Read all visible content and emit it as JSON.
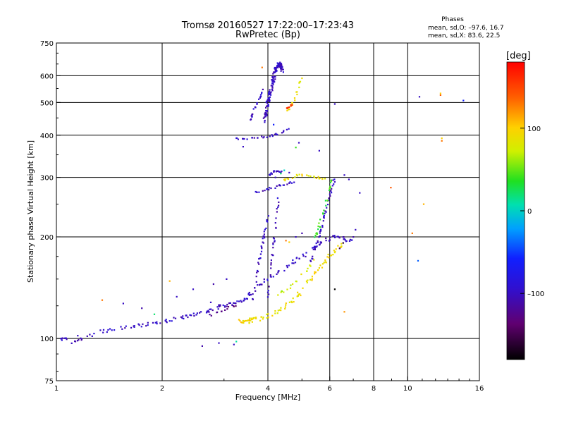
{
  "header": {
    "title": "Tromsø 20160527 17:22:00–17:23:43",
    "subtitle": "RwPretec (Bp)"
  },
  "phases_box": {
    "heading": "Phases",
    "line_o": "mean, sd,O: –97.6, 16.7",
    "line_x": "mean, sd,X:  83.6, 22.5"
  },
  "colorbar": {
    "unit_label": "[deg]",
    "range": [
      -180,
      180
    ],
    "ticks": [
      {
        "value": 100,
        "label": "100"
      },
      {
        "value": 0,
        "label": "0"
      },
      {
        "value": -100,
        "label": "–100"
      }
    ]
  },
  "chart_data": {
    "type": "scatter",
    "title": "Tromsø 20160527 17:22:00–17:23:43",
    "subtitle": "RwPretec (Bp)",
    "xlabel": "Frequency [MHz]",
    "ylabel": "Stationary phase Virtual Height [km]",
    "x_scale": "log",
    "y_scale": "log",
    "xlim": [
      1,
      16
    ],
    "ylim": [
      75,
      750
    ],
    "xticks": [
      {
        "value": 1,
        "label": "1"
      },
      {
        "value": 2,
        "label": "2"
      },
      {
        "value": 4,
        "label": "4"
      },
      {
        "value": 6,
        "label": "6"
      },
      {
        "value": 8,
        "label": "8"
      },
      {
        "value": 10,
        "label": "10"
      },
      {
        "value": 16,
        "label": "16"
      }
    ],
    "xgrid": [
      2,
      4,
      6,
      8,
      10
    ],
    "yticks": [
      {
        "value": 75,
        "label": "75"
      },
      {
        "value": 100,
        "label": "100"
      },
      {
        "value": 200,
        "label": "200"
      },
      {
        "value": 300,
        "label": "300"
      },
      {
        "value": 400,
        "label": "400"
      },
      {
        "value": 500,
        "label": "500"
      },
      {
        "value": 600,
        "label": "600"
      },
      {
        "value": 750,
        "label": "750"
      }
    ],
    "ygrid": [
      100,
      200,
      300,
      400,
      500,
      600
    ],
    "color_variable": "phase [deg]",
    "traces": [
      {
        "x": [
          1.0,
          1.05,
          1.1,
          1.15,
          1.2,
          1.3,
          1.4,
          1.5,
          1.6,
          1.7,
          1.8,
          1.9,
          2.0,
          2.1,
          2.2,
          2.3,
          2.4,
          2.5,
          2.6,
          2.7,
          2.8,
          2.9,
          3.0,
          3.1,
          3.2,
          3.3,
          3.4,
          3.5
        ],
        "y": [
          99,
          100,
          97,
          98,
          101,
          104,
          106,
          108,
          108,
          109,
          110,
          111,
          112,
          113,
          115,
          116,
          117,
          118,
          120,
          121,
          122,
          124,
          125,
          126,
          128,
          129,
          130,
          132
        ],
        "phase": -100,
        "jitter": 0.025,
        "per": 4
      },
      {
        "x": [
          3.4,
          3.55,
          3.7,
          3.85,
          4.0,
          4.2,
          4.4,
          4.6,
          4.8,
          5.0,
          5.2,
          5.4,
          5.6,
          5.8,
          6.0,
          6.2,
          6.4,
          6.6,
          6.8,
          7.0
        ],
        "y": [
          131,
          135,
          140,
          145,
          150,
          155,
          160,
          165,
          170,
          175,
          180,
          185,
          190,
          195,
          198,
          199,
          199,
          197,
          196,
          195
        ],
        "phase": -100,
        "jitter": 0.03,
        "per": 4
      },
      {
        "x": [
          3.5,
          3.7,
          3.9,
          4.1,
          4.3,
          4.5,
          4.7,
          4.9,
          5.1,
          5.3,
          5.5,
          5.7,
          5.9,
          6.1,
          6.3,
          6.5
        ],
        "y": [
          113,
          114,
          116,
          118,
          121,
          125,
          130,
          135,
          142,
          150,
          158,
          165,
          172,
          178,
          185,
          190
        ],
        "phase": 90,
        "jitter": 0.035,
        "per": 5
      },
      {
        "x": [
          5.3,
          5.4,
          5.5,
          5.6,
          5.7,
          5.8,
          5.9,
          6.0,
          6.1,
          6.2
        ],
        "y": [
          170,
          180,
          190,
          200,
          215,
          230,
          250,
          265,
          280,
          300
        ],
        "phase": -100,
        "jitter": 0.02,
        "per": 5
      },
      {
        "x": [
          5.4,
          5.5,
          5.6,
          5.7,
          5.8,
          5.9,
          6.0,
          6.1
        ],
        "y": [
          195,
          205,
          215,
          230,
          245,
          260,
          280,
          300
        ],
        "phase": 40,
        "jitter": 0.02,
        "per": 4
      },
      {
        "x": [
          3.6,
          3.7,
          3.75,
          3.8,
          3.85,
          3.9,
          3.95,
          4.0
        ],
        "y": [
          130,
          145,
          160,
          175,
          190,
          200,
          215,
          230
        ],
        "phase": -100,
        "jitter": 0.02,
        "per": 5
      },
      {
        "x": [
          4.0,
          4.05,
          4.1,
          4.15,
          4.2,
          4.25,
          4.3
        ],
        "y": [
          130,
          150,
          170,
          190,
          210,
          240,
          265
        ],
        "phase": -100,
        "jitter": 0.02,
        "per": 5
      },
      {
        "x": [
          3.6,
          3.8,
          4.0,
          4.2,
          4.4,
          4.6,
          4.8
        ],
        "y": [
          270,
          273,
          277,
          281,
          285,
          289,
          293
        ],
        "phase": -100,
        "jitter": 0.015,
        "per": 4
      },
      {
        "x": [
          4.3,
          4.5,
          4.7,
          4.9,
          5.1,
          5.3,
          5.5,
          5.7,
          5.9
        ],
        "y": [
          290,
          295,
          300,
          305,
          305,
          303,
          300,
          299,
          298
        ],
        "phase": 90,
        "jitter": 0.015,
        "per": 3
      },
      {
        "x": [
          4.0,
          4.1,
          4.2,
          4.3,
          4.4
        ],
        "y": [
          304,
          309,
          313,
          310,
          312
        ],
        "phase": -100,
        "jitter": 0.015,
        "per": 4
      },
      {
        "x": [
          3.2,
          3.4,
          3.6,
          3.8,
          4.0,
          4.2,
          4.4,
          4.6
        ],
        "y": [
          390,
          391,
          392,
          394,
          397,
          402,
          410,
          420
        ],
        "phase": -100,
        "jitter": 0.012,
        "per": 4
      },
      {
        "x": [
          3.9,
          3.95,
          4.0,
          4.05,
          4.1,
          4.15,
          4.2,
          4.25,
          4.3,
          4.35,
          4.4
        ],
        "y": [
          440,
          470,
          500,
          530,
          560,
          590,
          620,
          640,
          650,
          640,
          620
        ],
        "phase": -100,
        "jitter": 0.03,
        "per": 14
      },
      {
        "x": [
          3.55,
          3.6,
          3.7,
          3.8,
          3.9
        ],
        "y": [
          430,
          460,
          490,
          520,
          550
        ],
        "phase": -100,
        "jitter": 0.02,
        "per": 5
      },
      {
        "x": [
          4.55,
          4.65,
          4.75,
          4.85,
          4.95
        ],
        "y": [
          470,
          490,
          510,
          540,
          580
        ],
        "phase": 90,
        "jitter": 0.02,
        "per": 4
      },
      {
        "x": [
          4.5,
          4.6,
          4.7
        ],
        "y": [
          480,
          485,
          495
        ],
        "phase": 150,
        "jitter": 0.01,
        "per": 4
      },
      {
        "x": [
          3.3,
          3.4,
          3.5,
          3.6,
          3.7
        ],
        "y": [
          113,
          112,
          113,
          114,
          115
        ],
        "phase": 95,
        "jitter": 0.015,
        "per": 6
      },
      {
        "x": [
          2.7,
          2.8,
          2.9,
          3.0,
          3.1,
          3.2,
          3.3
        ],
        "y": [
          117,
          118,
          120,
          122,
          123,
          125,
          126
        ],
        "phase": -130,
        "jitter": 0.02,
        "per": 2
      },
      {
        "x": [
          4.2,
          4.4,
          4.6,
          4.8,
          5.0,
          5.2,
          5.4
        ],
        "y": [
          133,
          137,
          142,
          148,
          155,
          162,
          170
        ],
        "phase": 75,
        "jitter": 0.025,
        "per": 3
      }
    ],
    "points": [
      {
        "x": 1.35,
        "y": 130,
        "phase": 130
      },
      {
        "x": 1.55,
        "y": 127,
        "phase": -100
      },
      {
        "x": 1.75,
        "y": 123,
        "phase": -110
      },
      {
        "x": 2.1,
        "y": 148,
        "phase": 110
      },
      {
        "x": 2.2,
        "y": 133,
        "phase": -100
      },
      {
        "x": 2.6,
        "y": 95,
        "phase": -110
      },
      {
        "x": 2.9,
        "y": 97,
        "phase": -100
      },
      {
        "x": 3.2,
        "y": 96,
        "phase": -100
      },
      {
        "x": 3.25,
        "y": 98,
        "phase": 10
      },
      {
        "x": 2.45,
        "y": 140,
        "phase": -100
      },
      {
        "x": 2.8,
        "y": 145,
        "phase": -110
      },
      {
        "x": 3.05,
        "y": 150,
        "phase": -100
      },
      {
        "x": 4.6,
        "y": 310,
        "phase": -100
      },
      {
        "x": 4.35,
        "y": 308,
        "phase": 20
      },
      {
        "x": 4.45,
        "y": 315,
        "phase": 0
      },
      {
        "x": 4.2,
        "y": 300,
        "phase": -100
      },
      {
        "x": 4.5,
        "y": 195,
        "phase": 130
      },
      {
        "x": 4.6,
        "y": 193,
        "phase": 100
      },
      {
        "x": 4.8,
        "y": 200,
        "phase": -100
      },
      {
        "x": 5.0,
        "y": 205,
        "phase": -110
      },
      {
        "x": 4.9,
        "y": 380,
        "phase": -100
      },
      {
        "x": 4.8,
        "y": 368,
        "phase": 40
      },
      {
        "x": 6.6,
        "y": 305,
        "phase": -100
      },
      {
        "x": 6.8,
        "y": 296,
        "phase": -100
      },
      {
        "x": 7.0,
        "y": 200,
        "phase": -110
      },
      {
        "x": 7.1,
        "y": 210,
        "phase": -100
      },
      {
        "x": 7.3,
        "y": 270,
        "phase": -100
      },
      {
        "x": 6.2,
        "y": 495,
        "phase": -100
      },
      {
        "x": 6.2,
        "y": 140,
        "phase": -180
      },
      {
        "x": 6.6,
        "y": 120,
        "phase": 120
      },
      {
        "x": 6.4,
        "y": 185,
        "phase": -150
      },
      {
        "x": 6.55,
        "y": 192,
        "phase": -160
      },
      {
        "x": 8.95,
        "y": 280,
        "phase": 140
      },
      {
        "x": 10.3,
        "y": 205,
        "phase": 130
      },
      {
        "x": 10.7,
        "y": 170,
        "phase": -40
      },
      {
        "x": 10.8,
        "y": 520,
        "phase": -100
      },
      {
        "x": 11.1,
        "y": 250,
        "phase": 110
      },
      {
        "x": 12.4,
        "y": 526,
        "phase": 140
      },
      {
        "x": 12.4,
        "y": 532,
        "phase": 100
      },
      {
        "x": 12.5,
        "y": 385,
        "phase": 130
      },
      {
        "x": 12.5,
        "y": 392,
        "phase": 100
      },
      {
        "x": 14.4,
        "y": 507,
        "phase": -60
      },
      {
        "x": 5.6,
        "y": 360,
        "phase": -100
      },
      {
        "x": 5.0,
        "y": 590,
        "phase": 90
      },
      {
        "x": 3.85,
        "y": 635,
        "phase": 130
      },
      {
        "x": 4.15,
        "y": 430,
        "phase": -60
      },
      {
        "x": 3.4,
        "y": 370,
        "phase": -100
      },
      {
        "x": 2.75,
        "y": 128,
        "phase": -100
      },
      {
        "x": 1.9,
        "y": 118,
        "phase": 20
      },
      {
        "x": 1.15,
        "y": 102,
        "phase": -100
      }
    ]
  }
}
